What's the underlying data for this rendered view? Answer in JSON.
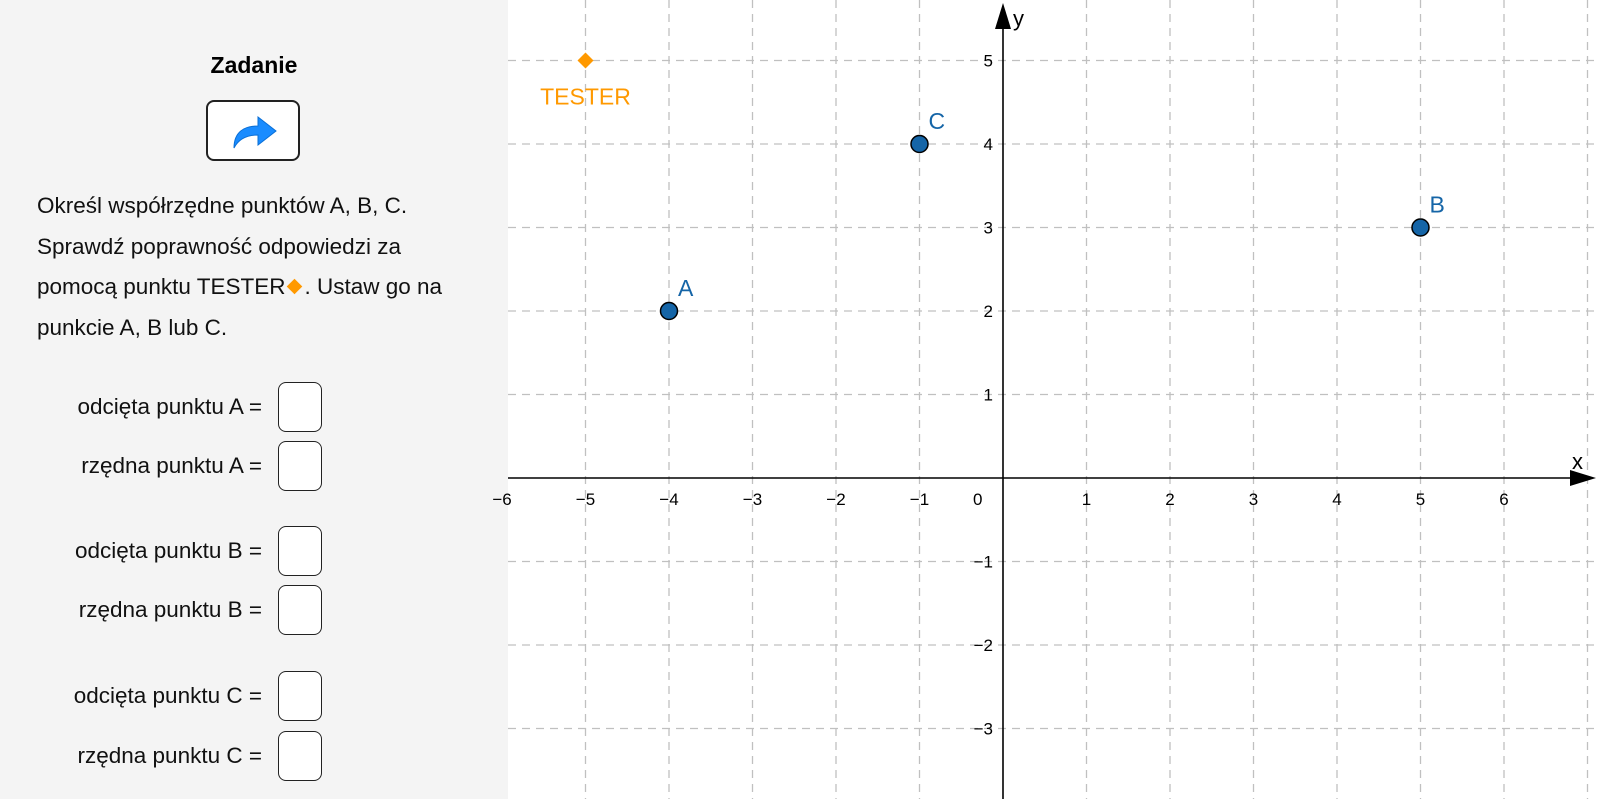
{
  "panel": {
    "title": "Zadanie",
    "next_button_icon": "redo-arrow-icon",
    "task_part1": "Określ współrzędne punktów A, B, C. Sprawdź poprawność odpowiedzi za pomocą punktu TESTER",
    "task_part2": ". Ustaw go na punkcie A, B lub C.",
    "inputs": [
      {
        "label": "odcięta punktu A =",
        "value": ""
      },
      {
        "label": "rzędna punktu A =",
        "value": ""
      },
      {
        "label": "odcięta punktu B =",
        "value": ""
      },
      {
        "label": "rzędna punktu B =",
        "value": ""
      },
      {
        "label": "odcięta punktu C =",
        "value": ""
      },
      {
        "label": "rzędna punktu C =",
        "value": ""
      }
    ]
  },
  "graph": {
    "x_axis_label": "x",
    "y_axis_label": "y",
    "x_ticks": [
      -6,
      -5,
      -4,
      -3,
      -2,
      -1,
      1,
      2,
      3,
      4,
      5,
      6
    ],
    "y_ticks": [
      -3,
      -2,
      -1,
      1,
      2,
      3,
      4,
      5
    ],
    "origin_label": "0",
    "grid": true,
    "points": [
      {
        "name": "A",
        "x": -4,
        "y": 2,
        "color": "#1565a7"
      },
      {
        "name": "B",
        "x": 5,
        "y": 3,
        "color": "#1565a7"
      },
      {
        "name": "C",
        "x": -1,
        "y": 4,
        "color": "#1565a7"
      },
      {
        "name": "TESTER",
        "x": -5,
        "y": 5,
        "color": "#ff9900",
        "shape": "diamond"
      }
    ]
  }
}
